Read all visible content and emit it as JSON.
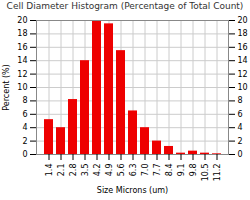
{
  "chart_data": {
    "type": "bar",
    "title": "Cell Diameter Histogram (Percentage of Total Count)",
    "xlabel": "Size Microns (um)",
    "ylabel": "Percent (%)",
    "categories": [
      "1.4",
      "2.1",
      "2.8",
      "3.5",
      "4.2",
      "4.9",
      "5.6",
      "6.3",
      "7.0",
      "7.7",
      "8.4",
      "9.1",
      "9.8",
      "10.5",
      "11.2"
    ],
    "values": [
      5.2,
      4.0,
      8.2,
      14.0,
      20.0,
      19.5,
      15.5,
      6.5,
      4.0,
      2.0,
      1.2,
      0.2,
      0.5,
      0.2,
      0.1
    ],
    "color": "#ee0000",
    "ylim": [
      0,
      20
    ],
    "yticks": [
      0,
      2,
      4,
      6,
      8,
      10,
      12,
      14,
      16,
      18,
      20
    ],
    "y2lim": [
      0,
      20
    ],
    "y2ticks": [
      0,
      2,
      4,
      6,
      8,
      10,
      12,
      14,
      16,
      18,
      20
    ],
    "grid": true
  }
}
